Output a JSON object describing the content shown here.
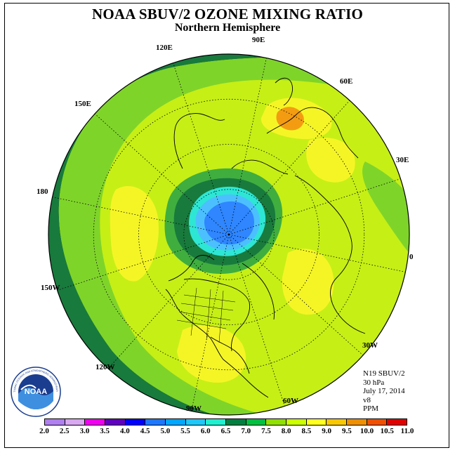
{
  "header": {
    "title": "NOAA SBUV/2 OZONE MIXING RATIO",
    "subtitle": "Northern Hemisphere"
  },
  "longitude_labels": [
    "90E",
    "60E",
    "30E",
    "0",
    "30W",
    "60W",
    "90W",
    "120W",
    "150W",
    "180",
    "150E",
    "120E"
  ],
  "info": {
    "satellite": "N19 SBUV/2",
    "level": "30 hPa",
    "date": "July 17, 2014",
    "version": "v8",
    "units": "PPM"
  },
  "colorbar": {
    "labels": [
      "2.0",
      "2.5",
      "3.0",
      "3.5",
      "4.0",
      "4.5",
      "5.0",
      "5.5",
      "6.0",
      "6.5",
      "7.0",
      "7.5",
      "8.0",
      "8.5",
      "9.0",
      "9.5",
      "10.0",
      "10.5",
      "11.0"
    ],
    "colors": [
      "#b080f0",
      "#d8a8f0",
      "#f000f0",
      "#6000c0",
      "#0000ff",
      "#1e78ff",
      "#00a8ff",
      "#20c8f8",
      "#20f0d0",
      "#008040",
      "#00c040",
      "#90e000",
      "#ccff00",
      "#ffff20",
      "#f8c800",
      "#f09000",
      "#f05000",
      "#e00000",
      "#a05030"
    ]
  },
  "map_colors": {
    "dark_green": "#187a3c",
    "green": "#7fd42a",
    "yellow_green": "#c6ef16",
    "yellow": "#f5f526",
    "gold": "#f8c200",
    "orange": "#f39c12",
    "mid_green": "#3fae3f",
    "cyan": "#2ee6d4",
    "light_blue": "#4cc0ff",
    "blue": "#2f86ff"
  },
  "logo": {
    "text": "NOAA",
    "ring_text": "NATIONAL OCEANIC AND ATMOSPHERIC ADMINISTRATION"
  }
}
